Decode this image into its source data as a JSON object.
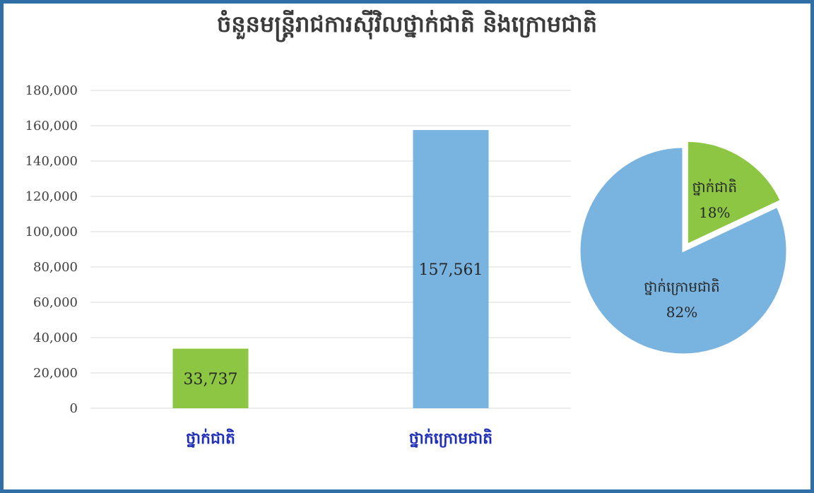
{
  "title": "ចំនួនមន្ត្រីរាជការស៊ីវិលថ្នាក់ជាតិ និងក្រោមជាតិ",
  "colors": {
    "green": "#8dc642",
    "blue": "#79b4e0",
    "category_text": "#1f2fb8",
    "gridline": "#d9d9d9",
    "frame": "#2f6fa5"
  },
  "chart_data": [
    {
      "type": "bar",
      "categories": [
        "ថ្នាក់ជាតិ",
        "ថ្នាក់ក្រោមជាតិ"
      ],
      "values": [
        33737,
        157561
      ],
      "data_labels": [
        "33,737",
        "157,561"
      ],
      "bar_colors": [
        "#8dc642",
        "#79b4e0"
      ],
      "y_ticks": [
        "0",
        "20,000",
        "40,000",
        "60,000",
        "80,000",
        "100,000",
        "120,000",
        "140,000",
        "160,000",
        "180,000"
      ],
      "ylim": [
        0,
        180000
      ],
      "grid": true
    },
    {
      "type": "pie",
      "slices": [
        {
          "label": "ថ្នាក់ជាតិ",
          "percent_label": "18%",
          "value": 18,
          "color": "#8dc642",
          "exploded": true
        },
        {
          "label": "ថ្នាក់ក្រោមជាតិ",
          "percent_label": "82%",
          "value": 82,
          "color": "#79b4e0",
          "exploded": false
        }
      ]
    }
  ]
}
